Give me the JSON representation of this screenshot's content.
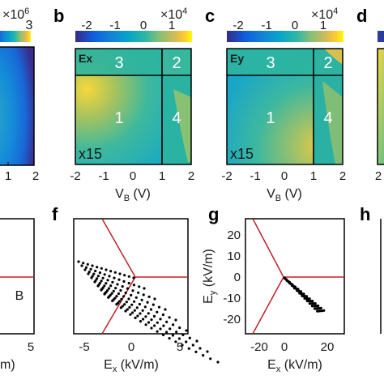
{
  "panels": {
    "a": {
      "label": "",
      "cbar_exp": "×10",
      "cbar_exp_sup": "6",
      "cbar_tick": "3",
      "xticks": [
        "1",
        "2"
      ]
    },
    "b": {
      "label": "b",
      "cbar_exp": "×10",
      "cbar_exp_sup": "4",
      "cbar_ticks": [
        "-2",
        "-1",
        "0",
        "1"
      ],
      "field": "Ex",
      "regions": [
        "3",
        "2",
        "1",
        "4"
      ],
      "scale": "x15",
      "xticks": [
        "-2",
        "-1",
        "0",
        "1",
        "2"
      ],
      "xlabel": "V",
      "xlabel_sub": "B",
      "xlabel_unit": " (V)"
    },
    "c": {
      "label": "c",
      "cbar_exp": "×10",
      "cbar_exp_sup": "4",
      "cbar_ticks": [
        "-2",
        "-1",
        "0",
        "1"
      ],
      "field": "Ey",
      "regions": [
        "3",
        "2",
        "1",
        "4"
      ],
      "scale": "x15",
      "xticks": [
        "-2",
        "-1",
        "0",
        "1",
        "2"
      ],
      "xlabel": "V",
      "xlabel_sub": "B",
      "xlabel_unit": " (V)"
    },
    "d": {
      "label": "d",
      "xticks": [
        "2"
      ]
    },
    "e": {
      "label": "",
      "region": "B",
      "xtick": "5",
      "xlabel_tail": "m)"
    },
    "f": {
      "label": "f",
      "xticks": [
        "-5",
        "0",
        "5"
      ],
      "xlabel": "E",
      "xlabel_sub": "x",
      "xlabel_unit": " (kV/m)"
    },
    "g": {
      "label": "g",
      "yticks": [
        "20",
        "10",
        "0",
        "-10",
        "-20"
      ],
      "xticks": [
        "-20",
        "0",
        "20"
      ],
      "ylabel": "E",
      "ylabel_sub": "y",
      "ylabel_unit": " (kV/m)",
      "xlabel": "E",
      "xlabel_sub": "x",
      "xlabel_unit": " (kV/m)"
    },
    "h": {
      "label": "h"
    }
  },
  "colors": {
    "boundary": "#c0202a",
    "points": "#000000",
    "frame": "#000000"
  },
  "chart_data": [
    {
      "panel": "b",
      "type": "heatmap",
      "x_range": [
        -2,
        2
      ],
      "y_range": [
        -2,
        2
      ],
      "colorbar_range": [
        -2.4,
        1.6
      ],
      "colorbar_scale": "1e4"
    },
    {
      "panel": "c",
      "type": "heatmap",
      "x_range": [
        -2,
        2
      ],
      "y_range": [
        -2,
        2
      ],
      "colorbar_range": [
        -2.4,
        1.6
      ],
      "colorbar_scale": "1e4"
    },
    {
      "panel": "f",
      "type": "scatter",
      "x_range": [
        -6.5,
        5.5
      ],
      "series": [
        {
          "lines": 9
        }
      ]
    },
    {
      "panel": "g",
      "type": "scatter",
      "x_range": [
        -28,
        28
      ],
      "y_range": [
        -27,
        27
      ]
    }
  ]
}
